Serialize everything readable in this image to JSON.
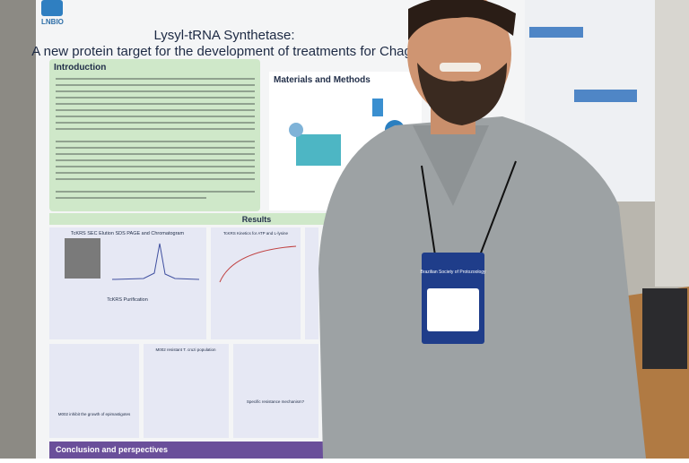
{
  "poster": {
    "logo": "LNBIO",
    "title_line1": "Lysyl-tRNA Synthetase:",
    "title_line2": "A new protein target for the development of treatments for Chagas",
    "sections": [
      "Introduction",
      "Materials and Methods",
      "Results",
      "Conclusion and perspectives"
    ],
    "panels": [
      "TcKRS SEC Elution SDS PAGE and Chromatogram",
      "TcKRS Purification",
      "TcKRS Kinetics for ATP and L-lysine",
      "M002 resistant T. cruzi population",
      "M002 inhibit the growth of epimastigotes",
      "Specific resistance mechanism?"
    ]
  },
  "badge": {
    "org": "Brazilian Society of Protozoology"
  }
}
